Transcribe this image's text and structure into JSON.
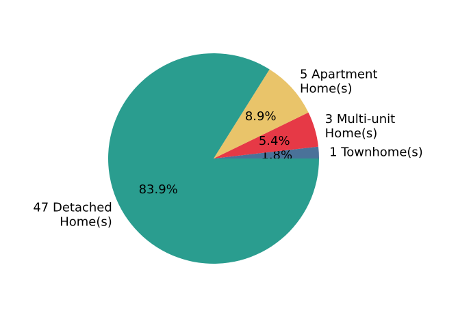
{
  "chart_data": {
    "type": "pie",
    "title": "",
    "start_angle_deg": 0,
    "direction": "counterclockwise",
    "slices": [
      {
        "label_lines": [
          "1 Townhome(s)"
        ],
        "count": 1,
        "value": 1.8,
        "pct_label": "1.8%",
        "color": "#4a7299"
      },
      {
        "label_lines": [
          "3 Multi-unit",
          "Home(s)"
        ],
        "count": 3,
        "value": 5.4,
        "pct_label": "5.4%",
        "color": "#e63946"
      },
      {
        "label_lines": [
          "5 Apartment",
          "Home(s)"
        ],
        "count": 5,
        "value": 8.9,
        "pct_label": "8.9%",
        "color": "#e9c46a"
      },
      {
        "label_lines": [
          "47 Detached",
          "Home(s)"
        ],
        "count": 47,
        "value": 83.9,
        "pct_label": "83.9%",
        "color": "#2a9d8f"
      }
    ]
  }
}
